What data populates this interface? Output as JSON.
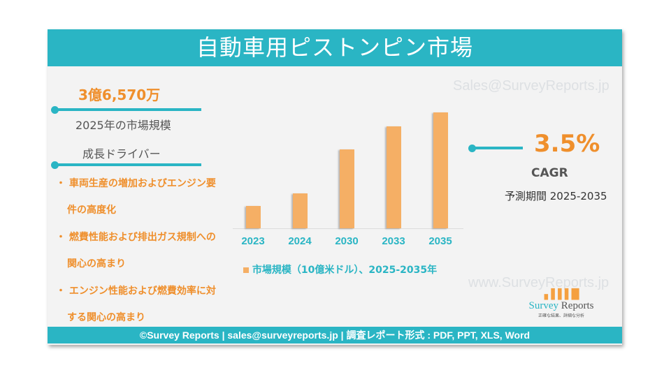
{
  "title": "自動車用ピストンピン市場",
  "market_size": {
    "value": "3億6,570万",
    "label": "2025年の市場規模"
  },
  "drivers": {
    "heading": "成長ドライバー",
    "items": [
      {
        "line1": "車両生産の増加およびエンジン要",
        "line2": "件の高度化"
      },
      {
        "line1": "燃費性能および排出ガス規制への",
        "line2": "関心の高まり"
      },
      {
        "line1": "エンジン性能および燃費効率に対",
        "line2": "する関心の高まり"
      }
    ]
  },
  "cagr": {
    "value": "3.5%",
    "label": "CAGR",
    "period": "予測期間 2025-2035"
  },
  "watermarks": {
    "email": "Sales@SurveyReports.jp",
    "url": "www.SurveyReports.jp"
  },
  "logo": {
    "text1": "Survey",
    "text2": "Reports",
    "tagline": "正確な結果、詳細な分析"
  },
  "footer": "©Survey Reports | sales@surveyreports.jp |  調査レポート形式 : PDF, PPT, XLS, Word",
  "colors": {
    "accent": "#2ab5c4",
    "bar": "#f5af65",
    "highlight": "#ef8f2c"
  },
  "chart_data": {
    "type": "bar",
    "categories": [
      "2023",
      "2024",
      "2030",
      "2033",
      "2035"
    ],
    "values": [
      0.19,
      0.3,
      0.68,
      0.88,
      1.0
    ],
    "value_note": "relative heights; no y-axis printed",
    "legend": "市場規模（10億米ドル）、2025-2035年",
    "legend_position": "bottom",
    "grid": false
  }
}
